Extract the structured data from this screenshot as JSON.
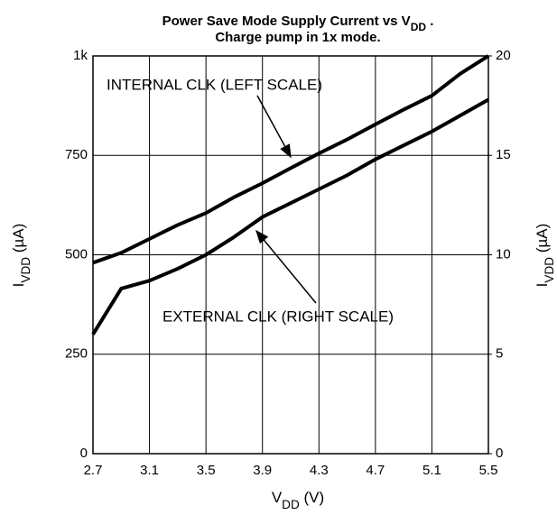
{
  "chart_data": {
    "type": "line",
    "title": [
      "Power Save Mode Supply Current vs V",
      "DD",
      " ."
    ],
    "subtitle": "Charge pump in 1x mode.",
    "xlabel": [
      "V",
      "DD",
      " (V)"
    ],
    "ylabel": [
      "I",
      "VDD",
      " (µA)"
    ],
    "y2label": [
      "I",
      "VDD",
      " (µA)"
    ],
    "x": [
      2.7,
      2.9,
      3.1,
      3.3,
      3.5,
      3.7,
      3.9,
      4.1,
      4.3,
      4.5,
      4.7,
      4.9,
      5.1,
      5.3,
      5.5
    ],
    "series": [
      {
        "name": "INTERNAL CLK (LEFT SCALE)",
        "color": "#000000",
        "values": [
          480,
          505,
          540,
          575,
          605,
          645,
          680,
          718,
          755,
          790,
          828,
          865,
          900,
          955,
          1000
        ]
      },
      {
        "name": "EXTERNAL CLK (RIGHT SCALE)",
        "color": "#000000",
        "axis": "y2",
        "values": [
          6.0,
          8.3,
          8.7,
          9.3,
          10.0,
          10.9,
          11.9,
          12.6,
          13.3,
          14.0,
          14.8,
          15.5,
          16.2,
          17.0,
          17.8
        ]
      }
    ],
    "xlim": [
      2.7,
      5.5
    ],
    "xticks": [
      2.7,
      3.1,
      3.5,
      3.9,
      4.3,
      4.7,
      5.1,
      5.5
    ],
    "ylim": [
      0,
      1000
    ],
    "yticks": [
      0,
      250,
      500,
      750,
      {
        "value": 1000,
        "label": "1k"
      }
    ],
    "y2lim": [
      0,
      20
    ],
    "y2ticks": [
      0,
      5,
      10,
      15,
      20
    ],
    "grid": true
  }
}
